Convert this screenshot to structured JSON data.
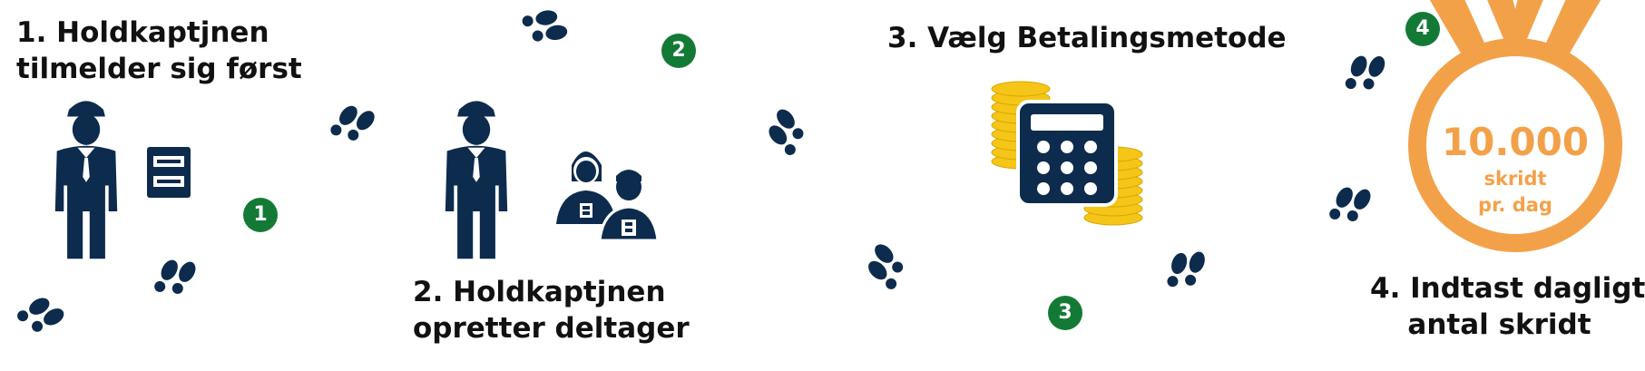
{
  "steps": [
    {
      "number_badge": "1",
      "title_line1": "1.  Holdkaptjnen",
      "title_line2": "tilmelder sig først"
    },
    {
      "number_badge": "2",
      "title_line1": "2. Holdkaptjnen",
      "title_line2": "opretter deltager"
    },
    {
      "number_badge": "3",
      "title_line1": "3. Vælg Betalingsmetode"
    },
    {
      "number_badge": "4",
      "title_line1": "4. Indtast dagligt",
      "title_line2": "antal skridt"
    }
  ],
  "medal": {
    "value": "10.000",
    "line1": "skridt",
    "line2": "pr. dag"
  },
  "colors": {
    "navy": "#0d2b4d",
    "badge_green": "#137a35",
    "medal_orange": "#f3a149",
    "coin_yellow": "#f5c518"
  },
  "icons": [
    "captain-icon",
    "id-card-icon",
    "participants-icon",
    "calculator-icon",
    "coins-icon",
    "footprints-icon",
    "medal-icon"
  ]
}
